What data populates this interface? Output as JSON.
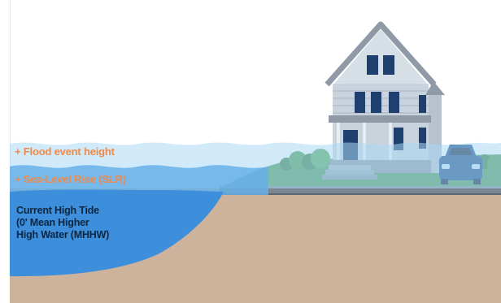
{
  "colors": {
    "sky": "#ffffff",
    "water_deep": "#3d8edb",
    "water_mid": "#66b0e8",
    "water_light": "#a9d8f4",
    "ground": "#cdb39c",
    "grass": "#4f9a5a",
    "road": "#7a8793",
    "house_siding": "#c9d3de",
    "roof": "#8f9aa6",
    "window": "#1f3f6e",
    "car": "#1e4c8a",
    "label_accent": "#ef8a4a",
    "label_dark": "#0c2742"
  },
  "labels": {
    "flood": "+ Flood event height",
    "slr": "+ Sea-Level Rise (SLR)",
    "tide_lines": [
      "Current High Tide",
      "(0' Mean Higher",
      "High Water (MHHW)"
    ]
  },
  "icons": [
    "house-icon",
    "car-icon",
    "shrub-icon"
  ]
}
